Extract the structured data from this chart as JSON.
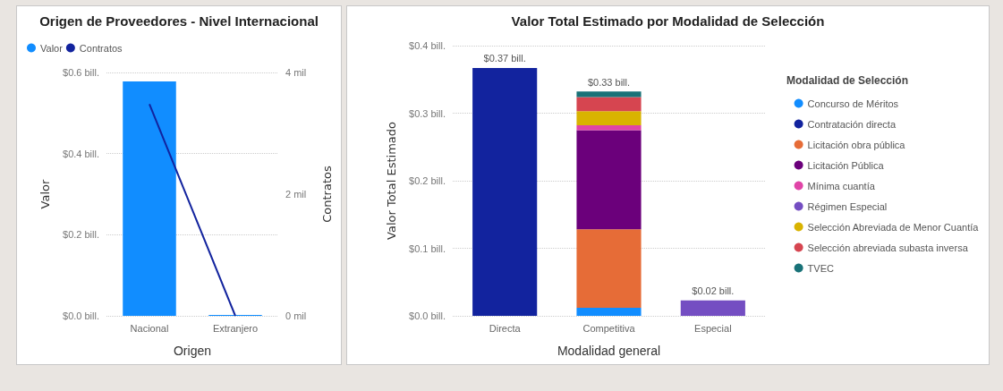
{
  "chart_data": [
    {
      "type": "bar",
      "title": "Origen de Proveedores - Nivel Internacional",
      "xlabel": "Origen",
      "ylabel": "Valor",
      "y2label": "Contratos",
      "categories": [
        "Nacional",
        "Extranjero"
      ],
      "series": [
        {
          "name": "Valor",
          "color": "#118dff",
          "values": [
            0.578,
            0.002
          ]
        },
        {
          "name": "Contratos",
          "type": "line",
          "axis": "y2",
          "color": "#12239e",
          "values": [
            3.48,
            0
          ]
        }
      ],
      "ylim": [
        0,
        0.6
      ],
      "yticks": [
        {
          "value": 0,
          "label": "$0.0 bill."
        },
        {
          "value": 0.2,
          "label": "$0.2 bill."
        },
        {
          "value": 0.4,
          "label": "$0.4 bill."
        },
        {
          "value": 0.6,
          "label": "$0.6 bill."
        }
      ],
      "y2lim": [
        0,
        4
      ],
      "y2ticks": [
        {
          "value": 0,
          "label": "0 mil"
        },
        {
          "value": 2,
          "label": "2 mil"
        },
        {
          "value": 4,
          "label": "4 mil"
        }
      ],
      "grid": "y",
      "legend": "top left",
      "marker": "none"
    },
    {
      "type": "bar",
      "title": "Valor Total Estimado por Modalidad de Selección",
      "xlabel": "Modalidad general",
      "ylabel": "Valor Total Estimado",
      "legend_title": "Modalidad de Selección",
      "categories": [
        "Directa",
        "Competitiva",
        "Especial"
      ],
      "stacked": true,
      "series": [
        {
          "name": "Concurso de Méritos",
          "color": "#118dff",
          "values": [
            null,
            0.012,
            null
          ]
        },
        {
          "name": "Contratación directa",
          "color": "#12239e",
          "values": [
            0.367,
            null,
            null
          ]
        },
        {
          "name": "Licitación obra pública",
          "color": "#e66c37",
          "values": [
            null,
            0.116,
            null
          ]
        },
        {
          "name": "Licitación Pública",
          "color": "#6b007b",
          "values": [
            null,
            0.147,
            null
          ]
        },
        {
          "name": "Mínima cuantía",
          "color": "#e044a7",
          "values": [
            null,
            0.007,
            null
          ]
        },
        {
          "name": "Régimen Especial",
          "color": "#744ec2",
          "values": [
            null,
            null,
            0.023
          ]
        },
        {
          "name": "Selección Abreviada de Menor Cuantía",
          "color": "#d9b300",
          "values": [
            null,
            0.021,
            null
          ]
        },
        {
          "name": "Selección abreviada subasta inversa",
          "color": "#d64550",
          "values": [
            null,
            0.021,
            null
          ]
        },
        {
          "name": "TVEC",
          "color": "#197278",
          "values": [
            null,
            0.008,
            null
          ]
        }
      ],
      "totals": [
        "$0.37 bill.",
        "$0.33 bill.",
        "$0.02 bill."
      ],
      "ylim": [
        0,
        0.4
      ],
      "yticks": [
        {
          "value": 0,
          "label": "$0.0 bill."
        },
        {
          "value": 0.1,
          "label": "$0.1 bill."
        },
        {
          "value": 0.2,
          "label": "$0.2 bill."
        },
        {
          "value": 0.3,
          "label": "$0.3 bill."
        },
        {
          "value": 0.4,
          "label": "$0.4 bill."
        }
      ],
      "grid": "y",
      "legend": "right"
    }
  ]
}
